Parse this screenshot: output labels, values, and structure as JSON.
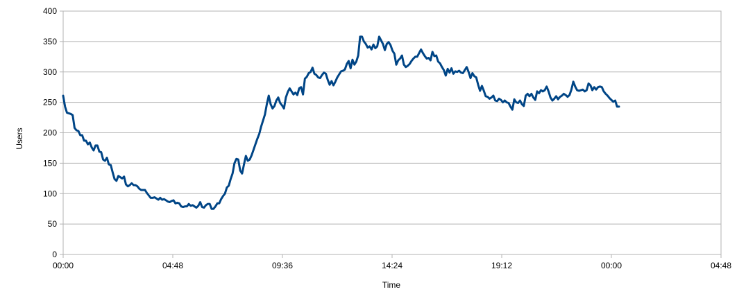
{
  "chart_data": {
    "type": "line",
    "xlabel": "Time",
    "ylabel": "Users",
    "x_ticks": [
      "00:00",
      "04:48",
      "09:36",
      "14:24",
      "19:12",
      "00:00",
      "04:48"
    ],
    "x_range_minutes": [
      0,
      1728
    ],
    "ylim": [
      0,
      400
    ],
    "y_ticks": [
      0,
      50,
      100,
      150,
      200,
      250,
      300,
      350,
      400
    ],
    "grid": "horizontal",
    "legend": "none",
    "line_color": "#004586",
    "series": [
      {
        "sample_interval_minutes": 5,
        "x_start": "00:00",
        "values": [
          261,
          243,
          233,
          232,
          231,
          229,
          208,
          204,
          203,
          196,
          196,
          187,
          187,
          181,
          184,
          176,
          171,
          179,
          179,
          169,
          168,
          156,
          154,
          159,
          148,
          147,
          135,
          124,
          121,
          129,
          127,
          125,
          128,
          115,
          112,
          114,
          117,
          114,
          114,
          112,
          108,
          106,
          106,
          106,
          101,
          97,
          93,
          93,
          94,
          92,
          90,
          93,
          90,
          91,
          89,
          87,
          86,
          88,
          89,
          84,
          85,
          84,
          79,
          78,
          79,
          79,
          83,
          80,
          81,
          79,
          77,
          80,
          86,
          78,
          77,
          81,
          83,
          83,
          75,
          75,
          79,
          84,
          84,
          91,
          96,
          100,
          110,
          113,
          124,
          133,
          150,
          157,
          156,
          138,
          133,
          148,
          162,
          154,
          156,
          163,
          172,
          181,
          190,
          198,
          210,
          220,
          230,
          247,
          261,
          247,
          240,
          244,
          253,
          258,
          249,
          245,
          240,
          258,
          267,
          273,
          268,
          263,
          266,
          262,
          273,
          275,
          263,
          289,
          292,
          298,
          300,
          307,
          297,
          295,
          291,
          290,
          295,
          299,
          297,
          287,
          279,
          285,
          278,
          284,
          291,
          296,
          301,
          302,
          304,
          313,
          318,
          306,
          320,
          312,
          317,
          327,
          358,
          358,
          350,
          346,
          340,
          342,
          337,
          345,
          339,
          342,
          358,
          352,
          346,
          336,
          346,
          349,
          344,
          335,
          330,
          312,
          319,
          322,
          327,
          312,
          308,
          310,
          313,
          318,
          322,
          325,
          325,
          331,
          337,
          331,
          326,
          322,
          323,
          319,
          333,
          326,
          327,
          317,
          314,
          308,
          303,
          294,
          305,
          299,
          306,
          297,
          301,
          300,
          302,
          299,
          298,
          303,
          308,
          300,
          290,
          298,
          293,
          291,
          279,
          269,
          277,
          269,
          260,
          259,
          256,
          258,
          261,
          253,
          252,
          256,
          254,
          250,
          253,
          250,
          249,
          243,
          238,
          255,
          250,
          249,
          253,
          247,
          244,
          261,
          264,
          260,
          264,
          258,
          254,
          268,
          265,
          270,
          268,
          270,
          276,
          268,
          258,
          253,
          256,
          260,
          255,
          259,
          261,
          264,
          262,
          259,
          262,
          271,
          284,
          276,
          270,
          269,
          270,
          271,
          268,
          270,
          281,
          278,
          270,
          275,
          271,
          275,
          276,
          275,
          268,
          264,
          261,
          257,
          254,
          251,
          253,
          243,
          243
        ]
      }
    ]
  }
}
